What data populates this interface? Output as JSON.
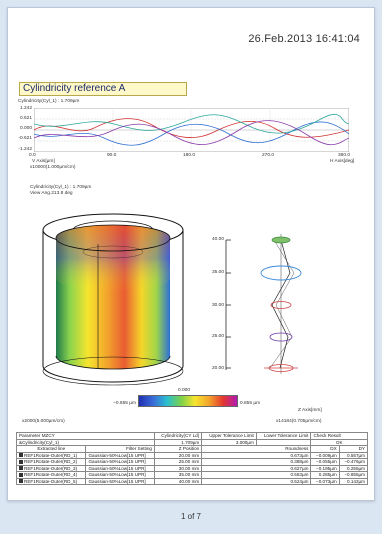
{
  "report": {
    "date": "26.Feb.2013 16:41:04",
    "title": "Cylindricity reference A",
    "page_indicator": "1 of 7"
  },
  "profile_plot": {
    "label": "Cylindricity(Cyl_1) : 1.709µm",
    "y_ticks": [
      "1.242",
      "0.621",
      "0.000",
      "-0.621",
      "-1.242"
    ],
    "x_ticks": [
      "0.0",
      "90.0",
      "180.0",
      "270.0",
      "360.0"
    ],
    "v_axis_label": "V Axis[µm]",
    "v_scale": "x10000(1.000µm/cm)",
    "h_axis_label": "H Axis[deg]",
    "colors": {
      "red": "#d03030",
      "blue": "#2f6fd0",
      "teal": "#2aa79a",
      "violet": "#8a3aa8"
    }
  },
  "cylinder_view": {
    "label_line1": "Cylindricity(Cyl_1) : 1.709µm",
    "label_line2": "View Ang.213.8 deg",
    "scale": "x2000(5.000µm/cm)"
  },
  "color_scale": {
    "min": "−0.855 µm",
    "mid": "0.000",
    "max": "0.855 µm"
  },
  "z_plot": {
    "ticks": [
      "40.00",
      "35.00",
      "30.00",
      "25.00",
      "20.00"
    ],
    "axis_label": "Z Axis[mm]",
    "scale": "x14184(0.705µm/cm)"
  },
  "results_table": {
    "headers": [
      "Parameter MZCY",
      "Cylindricity(CY Ld)",
      "Upper Tolerance Limit",
      "Lower Tolerance Limit",
      "Check Result"
    ],
    "summary": [
      "&Cylindricity(Cyl_1)",
      "1.709µm",
      "3.000µm",
      "",
      "OK"
    ],
    "detail_headers": [
      "Extracted line",
      "Filter Setting",
      "Z Position",
      "Roundness",
      "DX",
      "DY"
    ],
    "rows": [
      [
        "REF1Rotate-Outer(RD_1)",
        "Gaussian-50%Low[15 UPR]",
        "20.00 mm",
        "0.673µm",
        "−0.009µm",
        "0.557µm"
      ],
      [
        "REF1Rotate-Outer(RD_2)",
        "Gaussian-50%Low[15 UPR]",
        "25.00 mm",
        "0.388µm",
        "−0.055µm",
        "−0.476µm"
      ],
      [
        "REF1Rotate-Outer(RD_3)",
        "Gaussian-50%Low[15 UPR]",
        "30.00 mm",
        "0.627µm",
        "−0.195µm",
        "0.255µm"
      ],
      [
        "REF1Rotate-Outer(RD_4)",
        "Gaussian-50%Low[15 UPR]",
        "35.00 mm",
        "0.553µm",
        "0.285µm",
        "−0.855µm"
      ],
      [
        "REF1Rotate-Outer(RD_5)",
        "Gaussian-50%Low[15 UPR]",
        "40.00 mm",
        "0.524µm",
        "−0.073µm",
        "0.142µm"
      ]
    ]
  }
}
